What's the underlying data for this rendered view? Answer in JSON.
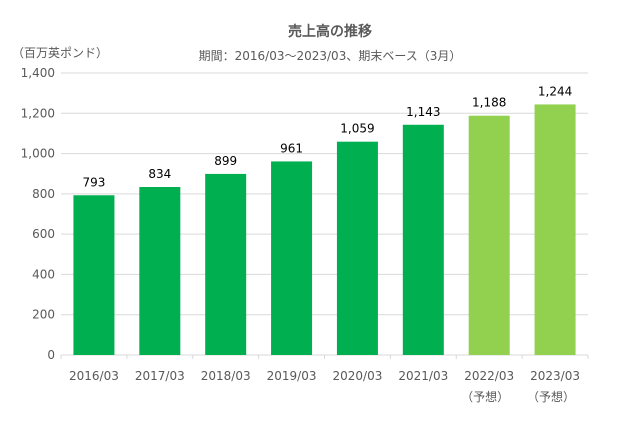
{
  "chart_data": {
    "type": "bar",
    "title": "売上高の推移",
    "subtitle": "期間：2016/03～2023/03、期末ベース（3月）",
    "ylabel": "（百万英ポンド）",
    "xlabel": "",
    "categories": [
      "2016/03",
      "2017/03",
      "2018/03",
      "2019/03",
      "2020/03",
      "2021/03",
      "2022/03",
      "2023/03"
    ],
    "category_notes": [
      "",
      "",
      "",
      "",
      "",
      "",
      "（予想）",
      "（予想）"
    ],
    "values": [
      793,
      834,
      899,
      961,
      1059,
      1143,
      1188,
      1244
    ],
    "data_labels": [
      "793",
      "834",
      "899",
      "961",
      "1,059",
      "1,143",
      "1,188",
      "1,244"
    ],
    "forecast": [
      false,
      false,
      false,
      false,
      false,
      false,
      true,
      true
    ],
    "ylim": [
      0,
      1400
    ],
    "yticks": [
      0,
      200,
      400,
      600,
      800,
      1000,
      1200,
      1400
    ],
    "ytick_labels": [
      "0",
      "200",
      "400",
      "600",
      "800",
      "1,000",
      "1,200",
      "1,400"
    ],
    "grid": true,
    "legend": "none",
    "colors": {
      "actual": "#00AF50",
      "forecast": "#92D050",
      "grid": "#D9D9D9",
      "text": "#595959"
    }
  }
}
